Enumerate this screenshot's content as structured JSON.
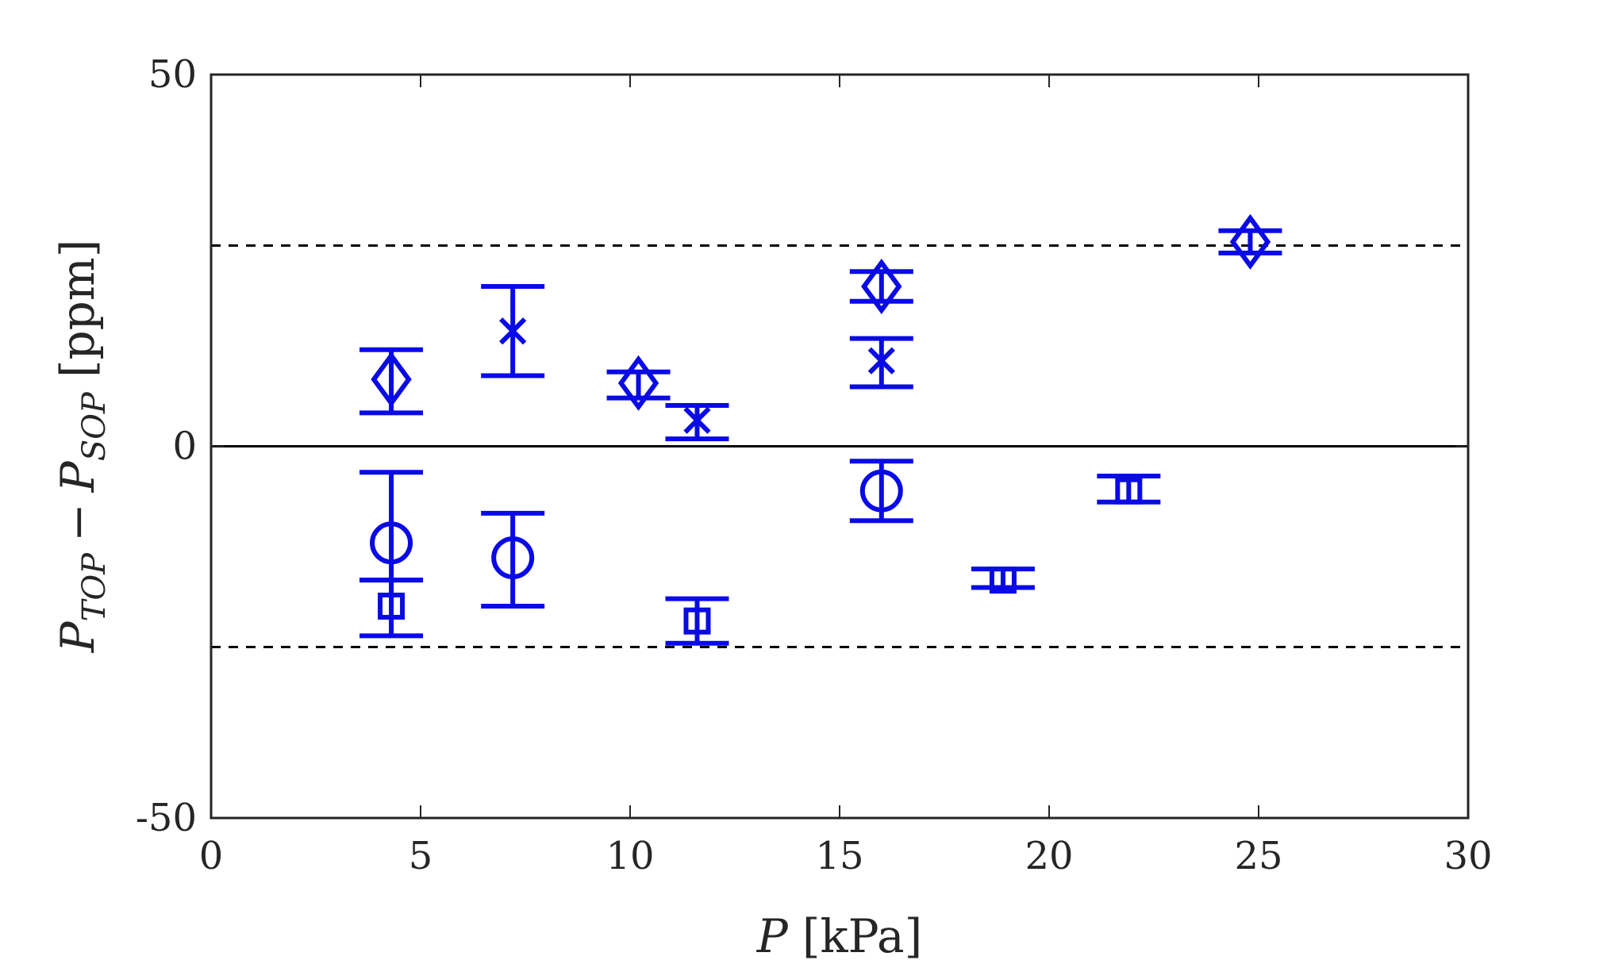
{
  "chart_data": {
    "type": "scatter",
    "title": "",
    "xlabel": {
      "symbol": "P",
      "unit": "[kPa]"
    },
    "ylabel": {
      "symbol": "P",
      "sub1": "TOP",
      "minus": "−",
      "symbol2": "P",
      "sub2": "SOP",
      "unit": "[ppm]"
    },
    "xlim": [
      0,
      30
    ],
    "ylim": [
      -50,
      50
    ],
    "xticks": [
      "0",
      "5",
      "10",
      "15",
      "20",
      "25",
      "30"
    ],
    "yticks": [
      "-50",
      "0",
      "50"
    ],
    "grid": false,
    "reference_lines": [
      {
        "y": 0,
        "style": "solid",
        "color": "#000000"
      },
      {
        "y": 27,
        "style": "dashed",
        "color": "#000000"
      },
      {
        "y": -27,
        "style": "dashed",
        "color": "#000000"
      }
    ],
    "marker_color": "#0a0ae6",
    "series": [
      {
        "marker": "diamond",
        "points": [
          {
            "x": 4.3,
            "y": 9,
            "lo": 4.5,
            "hi": 13
          },
          {
            "x": 10.2,
            "y": 8.5,
            "lo": 6.5,
            "hi": 10
          },
          {
            "x": 16.0,
            "y": 21.5,
            "lo": 19.5,
            "hi": 23.5
          },
          {
            "x": 24.8,
            "y": 27.5,
            "lo": 26,
            "hi": 29
          }
        ]
      },
      {
        "marker": "x",
        "points": [
          {
            "x": 7.2,
            "y": 15.5,
            "lo": 9.5,
            "hi": 21.5
          },
          {
            "x": 11.6,
            "y": 3.5,
            "lo": 1,
            "hi": 5.5
          },
          {
            "x": 16.0,
            "y": 11.5,
            "lo": 8,
            "hi": 14.5
          }
        ]
      },
      {
        "marker": "circle",
        "points": [
          {
            "x": 4.3,
            "y": -13,
            "lo": -18,
            "hi": -3.5
          },
          {
            "x": 7.2,
            "y": -15,
            "lo": -21.5,
            "hi": -9
          },
          {
            "x": 16.0,
            "y": -6,
            "lo": -10,
            "hi": -2
          }
        ]
      },
      {
        "marker": "square",
        "points": [
          {
            "x": 4.3,
            "y": -21.5,
            "lo": -25.5,
            "hi": -18
          },
          {
            "x": 11.6,
            "y": -23.5,
            "lo": -26.5,
            "hi": -20.5
          },
          {
            "x": 18.9,
            "y": -18,
            "lo": -19,
            "hi": -16.5
          },
          {
            "x": 21.9,
            "y": -6,
            "lo": -7.5,
            "hi": -4
          }
        ]
      }
    ]
  }
}
